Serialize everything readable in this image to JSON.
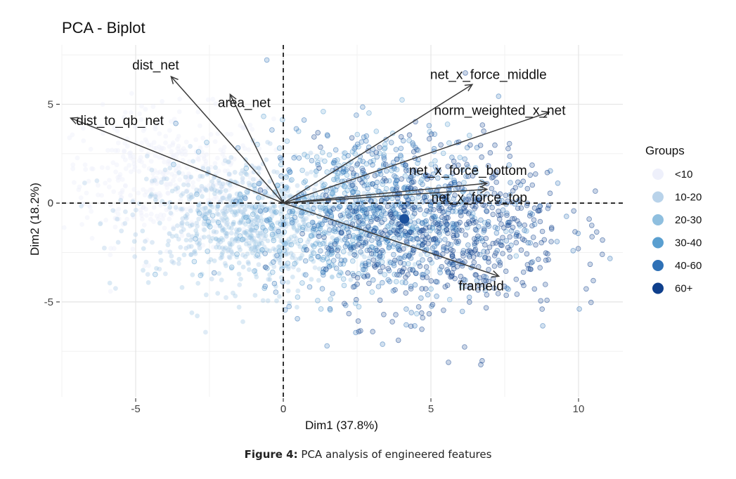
{
  "chart_data": {
    "type": "scatter",
    "title": "PCA - Biplot",
    "xlabel": "Dim1 (37.8%)",
    "ylabel": "Dim2 (18.2%)",
    "xlim": [
      -7.5,
      11.5
    ],
    "ylim": [
      -9.8,
      8.0
    ],
    "x_ticks": [
      -5,
      0,
      5,
      10
    ],
    "y_ticks": [
      -5,
      0,
      5
    ],
    "grid": true,
    "legend": {
      "title": "Groups",
      "placement": "right",
      "entries": [
        {
          "label": "<10",
          "color": "#eef0fb"
        },
        {
          "label": "10-20",
          "color": "#b9d3ea"
        },
        {
          "label": "20-30",
          "color": "#8fbfdf"
        },
        {
          "label": "30-40",
          "color": "#5a9fd0"
        },
        {
          "label": "40-60",
          "color": "#2f71b6"
        },
        {
          "label": "60+",
          "color": "#0f3f8c"
        }
      ]
    },
    "clusters": [
      {
        "group": "<10",
        "center": [
          -4.0,
          1.3
        ],
        "spread": [
          1.8,
          1.7
        ]
      },
      {
        "group": "10-20",
        "center": [
          -1.6,
          -0.5
        ],
        "spread": [
          1.8,
          1.5
        ]
      },
      {
        "group": "20-30",
        "center": [
          -0.5,
          -1.6
        ],
        "spread": [
          1.9,
          1.4
        ]
      },
      {
        "group": "30-40",
        "center": [
          2.3,
          -0.6
        ],
        "spread": [
          2.0,
          2.0
        ]
      },
      {
        "group": "40-60",
        "center": [
          3.8,
          -0.6
        ],
        "spread": [
          2.2,
          2.2
        ]
      },
      {
        "group": "60+",
        "center": [
          5.4,
          -1.3
        ],
        "spread": [
          2.1,
          2.2
        ]
      }
    ],
    "centroid": {
      "x": 4.1,
      "y": -0.8
    },
    "loadings": [
      {
        "name": "dist_net",
        "x": -3.8,
        "y": 6.4
      },
      {
        "name": "dist_to_qb_net",
        "x": -7.2,
        "y": 4.3
      },
      {
        "name": "area_net",
        "x": -1.8,
        "y": 5.5
      },
      {
        "name": "net_x_force_middle",
        "x": 6.4,
        "y": 6.0
      },
      {
        "name": "norm_weighted_x_net",
        "x": 9.0,
        "y": 4.6
      },
      {
        "name": "net_x_force_bottom",
        "x": 6.9,
        "y": 1.0
      },
      {
        "name": "net_x_force_top",
        "x": 6.9,
        "y": 0.7
      },
      {
        "name": "frameId",
        "x": 7.3,
        "y": -3.7
      }
    ]
  },
  "caption": {
    "label": "Figure 4:",
    "text": "PCA analysis of engineered features"
  }
}
